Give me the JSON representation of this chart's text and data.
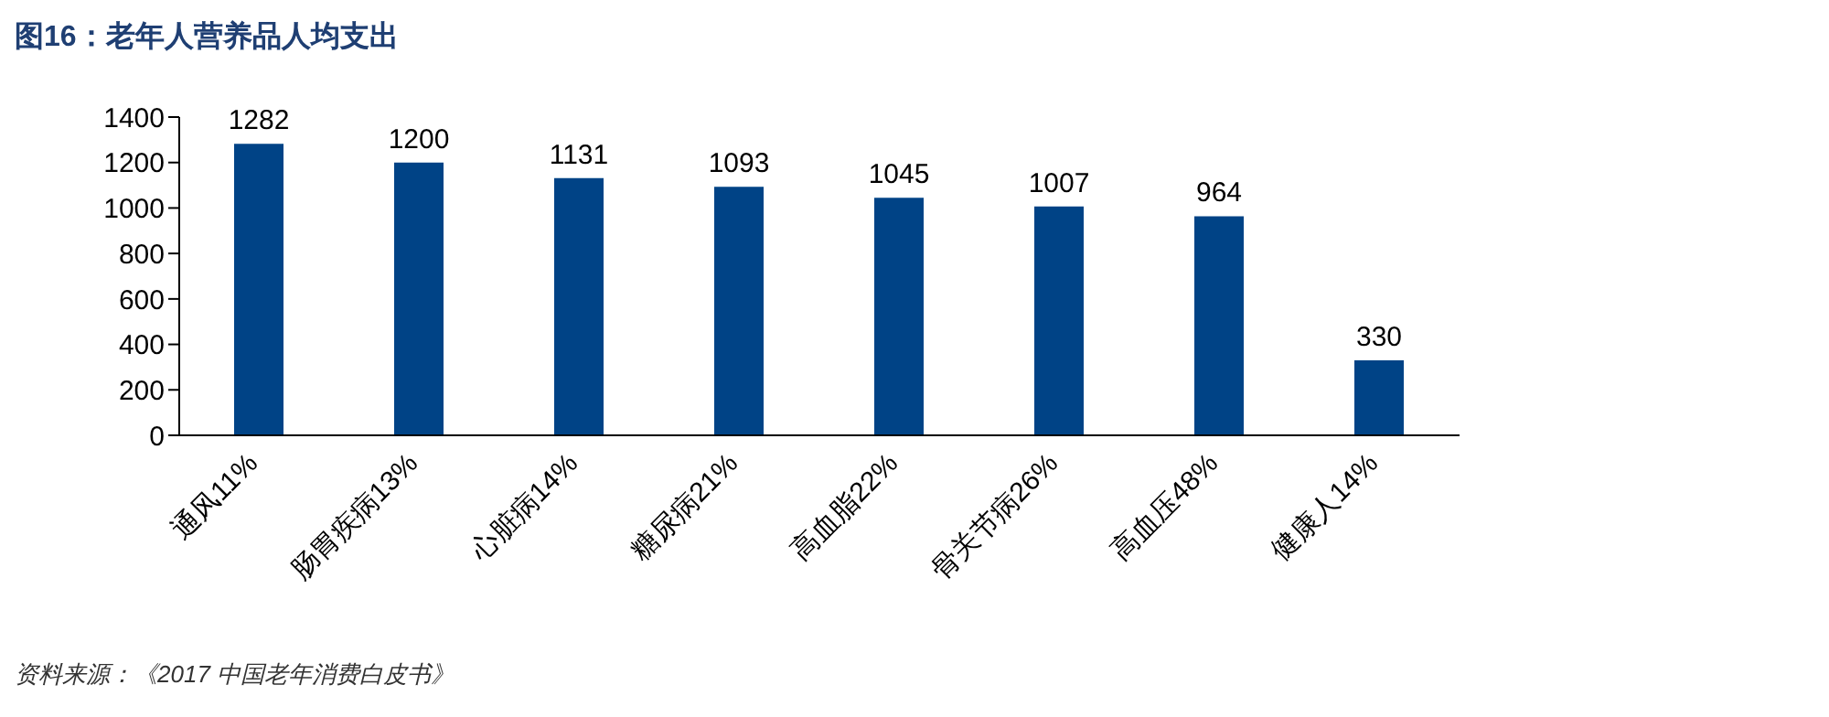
{
  "chart_data": {
    "type": "bar",
    "title": "图16：老年人营养品人均支出",
    "categories": [
      "通风11%",
      "肠胃疾病13%",
      "心脏病14%",
      "糖尿病21%",
      "高血脂22%",
      "骨关节病26%",
      "高血压48%",
      "健康人14%"
    ],
    "values": [
      1282,
      1200,
      1131,
      1093,
      1045,
      1007,
      964,
      330
    ],
    "color": "#004386",
    "ylim": [
      0,
      1400
    ],
    "yticks": [
      0,
      200,
      400,
      600,
      800,
      1000,
      1200,
      1400
    ],
    "grid": false,
    "data_labels": true,
    "annotations": [
      "资料来源：《2017 中国老年消费白皮书》"
    ]
  }
}
